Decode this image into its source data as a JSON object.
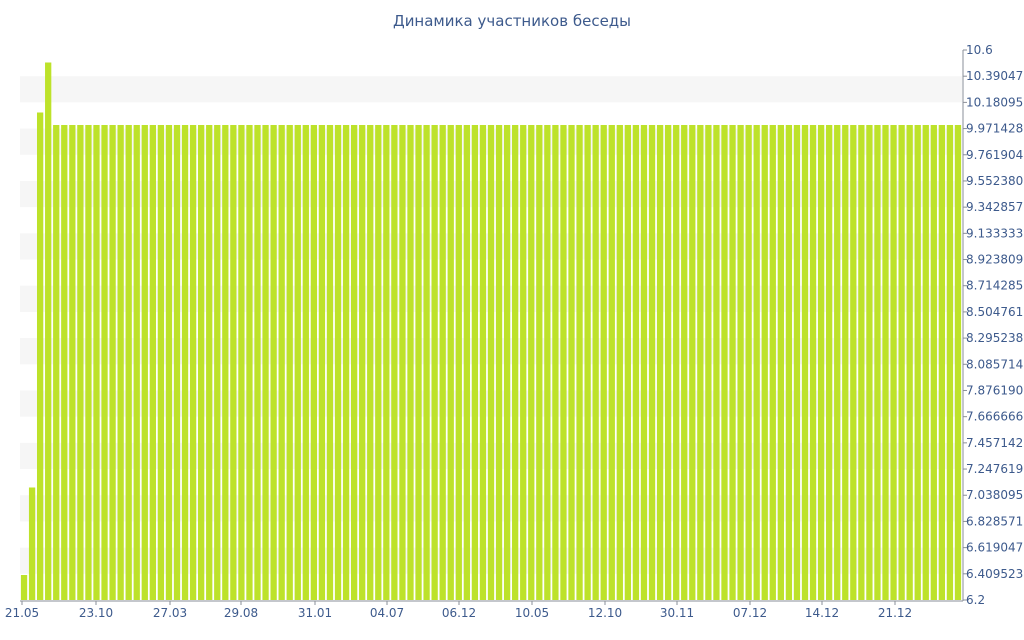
{
  "chart_data": {
    "type": "bar",
    "title": "Динамика участников беседы",
    "xlabel": "",
    "ylabel": "",
    "ylim": [
      6.2,
      10.6
    ],
    "y_ticks": [
      "10.6",
      "10.390476",
      "10.180952",
      "9.971428",
      "9.761904",
      "9.552380",
      "9.342857",
      "9.133333",
      "8.923809",
      "8.714285",
      "8.504761",
      "8.295238",
      "8.085714",
      "7.876190",
      "7.666666",
      "7.457142",
      "7.247619",
      "7.038095",
      "6.828571",
      "6.619047",
      "6.409523",
      "6.2"
    ],
    "x_ticks": [
      "21.05",
      "23.10",
      "27.03",
      "29.08",
      "31.01",
      "04.07",
      "06.12",
      "10.05",
      "12.10",
      "30.11",
      "07.12",
      "14.12",
      "21.12"
    ],
    "bar_count": 117,
    "values": [
      6.4,
      7.1,
      10.1,
      10.5,
      10.0,
      10.0,
      10.0,
      10.0,
      10.0,
      10.0,
      10.0,
      10.0,
      10.0,
      10.0,
      10.0,
      10.0,
      10.0,
      10.0,
      10.0,
      10.0,
      10.0,
      10.0,
      10.0,
      10.0,
      10.0,
      10.0,
      10.0,
      10.0,
      10.0,
      10.0,
      10.0,
      10.0,
      10.0,
      10.0,
      10.0,
      10.0,
      10.0,
      10.0,
      10.0,
      10.0,
      10.0,
      10.0,
      10.0,
      10.0,
      10.0,
      10.0,
      10.0,
      10.0,
      10.0,
      10.0,
      10.0,
      10.0,
      10.0,
      10.0,
      10.0,
      10.0,
      10.0,
      10.0,
      10.0,
      10.0,
      10.0,
      10.0,
      10.0,
      10.0,
      10.0,
      10.0,
      10.0,
      10.0,
      10.0,
      10.0,
      10.0,
      10.0,
      10.0,
      10.0,
      10.0,
      10.0,
      10.0,
      10.0,
      10.0,
      10.0,
      10.0,
      10.0,
      10.0,
      10.0,
      10.0,
      10.0,
      10.0,
      10.0,
      10.0,
      10.0,
      10.0,
      10.0,
      10.0,
      10.0,
      10.0,
      10.0,
      10.0,
      10.0,
      10.0,
      10.0,
      10.0,
      10.0,
      10.0,
      10.0,
      10.0,
      10.0,
      10.0,
      10.0,
      10.0,
      10.0,
      10.0,
      10.0,
      10.0,
      10.0,
      10.0,
      10.0,
      10.0
    ],
    "grid": "alternating-bands",
    "legend": "none",
    "colors": {
      "bar": "#bde22a",
      "band": "#f6f6f6",
      "text": "#3d5a8c",
      "axis": "#8a8f99"
    }
  }
}
